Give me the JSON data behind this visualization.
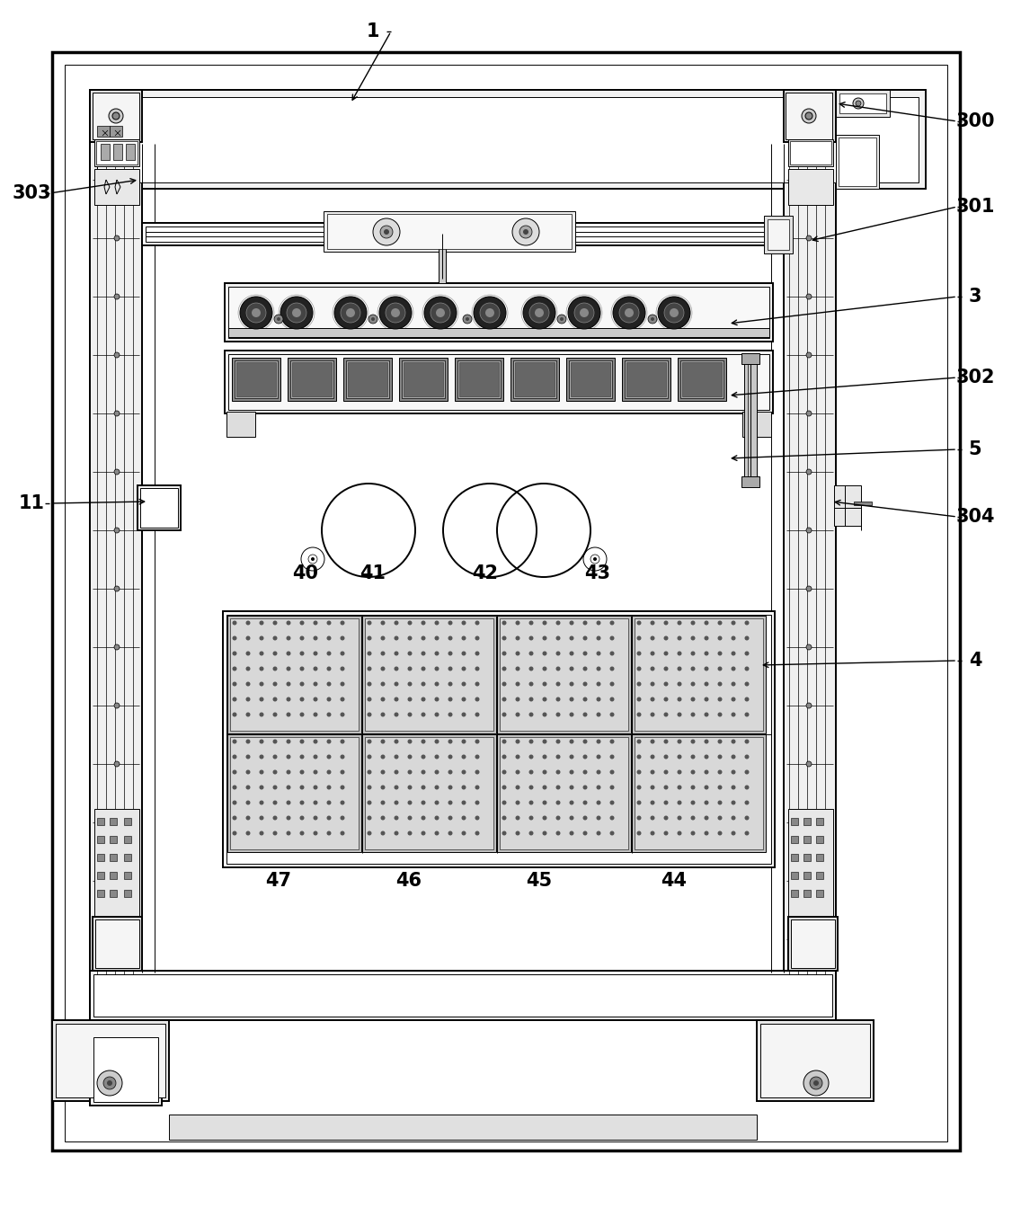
{
  "bg_color": "#ffffff",
  "lc": "#000000",
  "figure_width": 11.36,
  "figure_height": 13.44,
  "dpi": 100,
  "labels_info": [
    [
      "1",
      415,
      35,
      390,
      115
    ],
    [
      "300",
      1085,
      135,
      930,
      115
    ],
    [
      "301",
      1085,
      230,
      900,
      268
    ],
    [
      "3",
      1085,
      330,
      810,
      360
    ],
    [
      "302",
      1085,
      420,
      810,
      440
    ],
    [
      "5",
      1085,
      500,
      810,
      510
    ],
    [
      "304",
      1085,
      575,
      925,
      558
    ],
    [
      "4",
      1085,
      735,
      845,
      740
    ],
    [
      "11",
      35,
      560,
      165,
      558
    ],
    [
      "303",
      35,
      215,
      155,
      200
    ]
  ],
  "nums_middle": [
    [
      "40",
      340,
      638
    ],
    [
      "41",
      415,
      638
    ],
    [
      "42",
      540,
      638
    ],
    [
      "43",
      665,
      638
    ]
  ],
  "nums_bottom": [
    [
      "47",
      310,
      980
    ],
    [
      "46",
      455,
      980
    ],
    [
      "45",
      600,
      980
    ],
    [
      "44",
      750,
      980
    ]
  ]
}
